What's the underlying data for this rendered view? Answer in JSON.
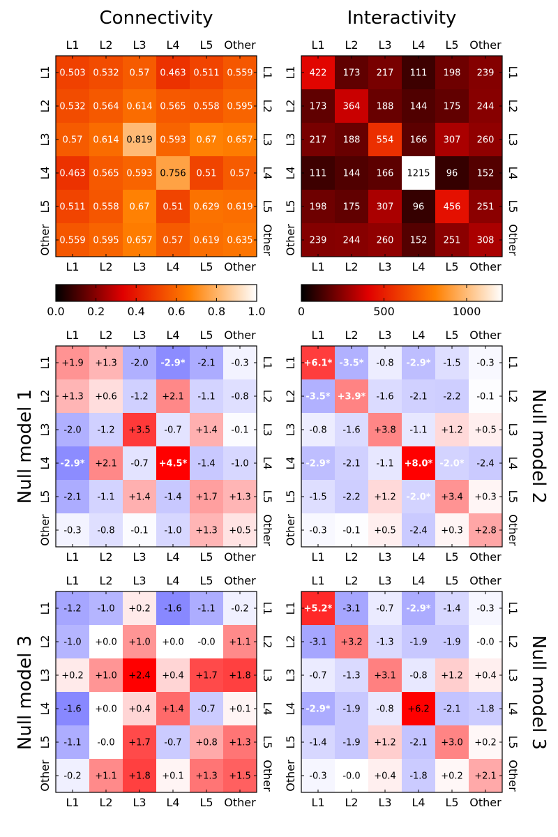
{
  "figure": {
    "colors": {
      "connectivity_colormap": [
        "#000000",
        "#e00000",
        "#ff8000",
        "#ffffff"
      ],
      "interactivity_colormap": [
        "#000000",
        "#e00000",
        "#ff8000",
        "#ffffff"
      ],
      "diverging_negative": "#4d4dff",
      "diverging_positive": "#ff0000",
      "diverging_center": "#ffffff"
    },
    "col_titles": [
      "Connectivity",
      "Interactivity"
    ],
    "row_titles": {
      "left": [
        "",
        "Null model 1",
        "Null model 3"
      ],
      "right": [
        "",
        "Null model 2",
        "Null model 3"
      ]
    }
  },
  "chart_data": [
    {
      "type": "heatmap",
      "title": "Connectivity",
      "categories": [
        "L1",
        "L2",
        "L3",
        "L4",
        "L5",
        "Other"
      ],
      "values": [
        [
          0.503,
          0.532,
          0.57,
          0.463,
          0.511,
          0.559
        ],
        [
          0.532,
          0.564,
          0.614,
          0.565,
          0.558,
          0.595
        ],
        [
          0.57,
          0.614,
          0.819,
          0.593,
          0.67,
          0.657
        ],
        [
          0.463,
          0.565,
          0.593,
          0.756,
          0.51,
          0.57
        ],
        [
          0.511,
          0.558,
          0.67,
          0.51,
          0.629,
          0.619
        ],
        [
          0.559,
          0.595,
          0.657,
          0.57,
          0.619,
          0.635
        ]
      ],
      "labels": [
        [
          "0.503",
          "0.532",
          "0.57",
          "0.463",
          "0.511",
          "0.559"
        ],
        [
          "0.532",
          "0.564",
          "0.614",
          "0.565",
          "0.558",
          "0.595"
        ],
        [
          "0.57",
          "0.614",
          "0.819",
          "0.593",
          "0.67",
          "0.657"
        ],
        [
          "0.463",
          "0.565",
          "0.593",
          "0.756",
          "0.51",
          "0.57"
        ],
        [
          "0.511",
          "0.558",
          "0.67",
          "0.51",
          "0.629",
          "0.619"
        ],
        [
          "0.559",
          "0.595",
          "0.657",
          "0.57",
          "0.619",
          "0.635"
        ]
      ],
      "colormap": "hot",
      "vmin": 0,
      "vmax": 1,
      "colorbar_ticks": [
        "0.0",
        "0.2",
        "0.4",
        "0.6",
        "0.8",
        "1.0"
      ],
      "colorbar_tick_values": [
        0,
        0.2,
        0.4,
        0.6,
        0.8,
        1.0
      ]
    },
    {
      "type": "heatmap",
      "title": "Interactivity",
      "categories": [
        "L1",
        "L2",
        "L3",
        "L4",
        "L5",
        "Other"
      ],
      "values": [
        [
          422,
          173,
          217,
          111,
          198,
          239
        ],
        [
          173,
          364,
          188,
          144,
          175,
          244
        ],
        [
          217,
          188,
          554,
          166,
          307,
          260
        ],
        [
          111,
          144,
          166,
          1215,
          96,
          152
        ],
        [
          198,
          175,
          307,
          96,
          456,
          251
        ],
        [
          239,
          244,
          260,
          152,
          251,
          308
        ]
      ],
      "labels": [
        [
          "422",
          "173",
          "217",
          "111",
          "198",
          "239"
        ],
        [
          "173",
          "364",
          "188",
          "144",
          "175",
          "244"
        ],
        [
          "217",
          "188",
          "554",
          "166",
          "307",
          "260"
        ],
        [
          "111",
          "144",
          "166",
          "1215",
          "96",
          "152"
        ],
        [
          "198",
          "175",
          "307",
          "96",
          "456",
          "251"
        ],
        [
          "239",
          "244",
          "260",
          "152",
          "251",
          "308"
        ]
      ],
      "colormap": "hot",
      "vmin": 0,
      "vmax": 1215,
      "colorbar_ticks": [
        "0",
        "500",
        "1000"
      ],
      "colorbar_tick_values": [
        0,
        500,
        1000
      ]
    },
    {
      "type": "heatmap",
      "title": "",
      "row_title": "Null model 1",
      "categories": [
        "L1",
        "L2",
        "L3",
        "L4",
        "L5",
        "Other"
      ],
      "values": [
        [
          1.9,
          1.3,
          -2.0,
          -2.9,
          -2.1,
          -0.3
        ],
        [
          1.3,
          0.6,
          -1.2,
          2.1,
          -1.1,
          -0.8
        ],
        [
          -2.0,
          -1.2,
          3.5,
          -0.7,
          1.4,
          -0.1
        ],
        [
          -2.9,
          2.1,
          -0.7,
          4.5,
          -1.4,
          -1.0
        ],
        [
          -2.1,
          -1.1,
          1.4,
          -1.4,
          1.7,
          1.3
        ],
        [
          -0.3,
          -0.8,
          -0.1,
          -1.0,
          1.3,
          0.5
        ]
      ],
      "labels": [
        [
          "+1.9",
          "+1.3",
          "-2.0",
          "-2.9*",
          "-2.1",
          "-0.3"
        ],
        [
          "+1.3",
          "+0.6",
          "-1.2",
          "+2.1",
          "-1.1",
          "-0.8"
        ],
        [
          "-2.0",
          "-1.2",
          "+3.5",
          "-0.7",
          "+1.4",
          "-0.1"
        ],
        [
          "-2.9*",
          "+2.1",
          "-0.7",
          "+4.5*",
          "-1.4",
          "-1.0"
        ],
        [
          "-2.1",
          "-1.1",
          "+1.4",
          "-1.4",
          "+1.7",
          "+1.3"
        ],
        [
          "-0.3",
          "-0.8",
          "-0.1",
          "-1.0",
          "+1.3",
          "+0.5"
        ]
      ],
      "colormap": "bwr",
      "vmin": -4.5,
      "vmax": 4.5
    },
    {
      "type": "heatmap",
      "title": "",
      "row_title": "Null model 2",
      "categories": [
        "L1",
        "L2",
        "L3",
        "L4",
        "L5",
        "Other"
      ],
      "values": [
        [
          6.1,
          -3.5,
          -0.8,
          -2.9,
          -1.5,
          -0.3
        ],
        [
          -3.5,
          3.9,
          -1.6,
          -2.1,
          -2.2,
          -0.1
        ],
        [
          -0.8,
          -1.6,
          3.8,
          -1.1,
          1.2,
          0.5
        ],
        [
          -2.9,
          -2.1,
          -1.1,
          8.0,
          -2.0,
          -2.4
        ],
        [
          -1.5,
          -2.2,
          1.2,
          -2.0,
          3.4,
          0.3
        ],
        [
          -0.3,
          -0.1,
          0.5,
          -2.4,
          0.3,
          2.8
        ]
      ],
      "labels": [
        [
          "+6.1*",
          "-3.5*",
          "-0.8",
          "-2.9*",
          "-1.5",
          "-0.3"
        ],
        [
          "-3.5*",
          "+3.9*",
          "-1.6",
          "-2.1",
          "-2.2",
          "-0.1"
        ],
        [
          "-0.8",
          "-1.6",
          "+3.8",
          "-1.1",
          "+1.2",
          "+0.5"
        ],
        [
          "-2.9*",
          "-2.1",
          "-1.1",
          "+8.0*",
          "-2.0*",
          "-2.4"
        ],
        [
          "-1.5",
          "-2.2",
          "+1.2",
          "-2.0*",
          "+3.4",
          "+0.3"
        ],
        [
          "-0.3",
          "-0.1",
          "+0.5",
          "-2.4",
          "+0.3",
          "+2.8"
        ]
      ],
      "colormap": "bwr",
      "vmin": -8,
      "vmax": 8
    },
    {
      "type": "heatmap",
      "title": "",
      "row_title": "Null model 3",
      "categories": [
        "L1",
        "L2",
        "L3",
        "L4",
        "L5",
        "Other"
      ],
      "values": [
        [
          -1.2,
          -1.0,
          0.2,
          -1.6,
          -1.1,
          -0.2
        ],
        [
          -1.0,
          0.0,
          1.0,
          0.0,
          -0.0,
          1.1
        ],
        [
          0.2,
          1.0,
          2.4,
          0.4,
          1.7,
          1.8
        ],
        [
          -1.6,
          0.0,
          0.4,
          1.4,
          -0.7,
          0.1
        ],
        [
          -1.1,
          -0.0,
          1.7,
          -0.7,
          0.8,
          1.3
        ],
        [
          -0.2,
          1.1,
          1.8,
          0.1,
          1.3,
          1.5
        ]
      ],
      "labels": [
        [
          "-1.2",
          "-1.0",
          "+0.2",
          "-1.6",
          "-1.1",
          "-0.2"
        ],
        [
          "-1.0",
          "+0.0",
          "+1.0",
          "+0.0",
          "-0.0",
          "+1.1"
        ],
        [
          "+0.2",
          "+1.0",
          "+2.4",
          "+0.4",
          "+1.7",
          "+1.8"
        ],
        [
          "-1.6",
          "+0.0",
          "+0.4",
          "+1.4",
          "-0.7",
          "+0.1"
        ],
        [
          "-1.1",
          "-0.0",
          "+1.7",
          "-0.7",
          "+0.8",
          "+1.3"
        ],
        [
          "-0.2",
          "+1.1",
          "+1.8",
          "+0.1",
          "+1.3",
          "+1.5"
        ]
      ],
      "colormap": "bwr",
      "vmin": -2.4,
      "vmax": 2.4
    },
    {
      "type": "heatmap",
      "title": "",
      "row_title": "Null model 3",
      "categories": [
        "L1",
        "L2",
        "L3",
        "L4",
        "L5",
        "Other"
      ],
      "values": [
        [
          5.2,
          -3.1,
          -0.7,
          -2.9,
          -1.4,
          -0.3
        ],
        [
          -3.1,
          3.2,
          -1.3,
          -1.9,
          -1.9,
          -0.0
        ],
        [
          -0.7,
          -1.3,
          3.1,
          -0.8,
          1.2,
          0.4
        ],
        [
          -2.9,
          -1.9,
          -0.8,
          6.2,
          -2.1,
          -1.8
        ],
        [
          -1.4,
          -1.9,
          1.2,
          -2.1,
          3.0,
          0.2
        ],
        [
          -0.3,
          -0.0,
          0.4,
          -1.8,
          0.2,
          2.1
        ]
      ],
      "labels": [
        [
          "+5.2*",
          "-3.1",
          "-0.7",
          "-2.9*",
          "-1.4",
          "-0.3"
        ],
        [
          "-3.1",
          "+3.2",
          "-1.3",
          "-1.9",
          "-1.9",
          "-0.0"
        ],
        [
          "-0.7",
          "-1.3",
          "+3.1",
          "-0.8",
          "+1.2",
          "+0.4"
        ],
        [
          "-2.9*",
          "-1.9",
          "-0.8",
          "+6.2",
          "-2.1",
          "-1.8"
        ],
        [
          "-1.4",
          "-1.9",
          "+1.2",
          "-2.1",
          "+3.0",
          "+0.2"
        ],
        [
          "-0.3",
          "-0.0",
          "+0.4",
          "-1.8",
          "+0.2",
          "+2.1"
        ]
      ],
      "colormap": "bwr",
      "vmin": -6.2,
      "vmax": 6.2
    }
  ]
}
